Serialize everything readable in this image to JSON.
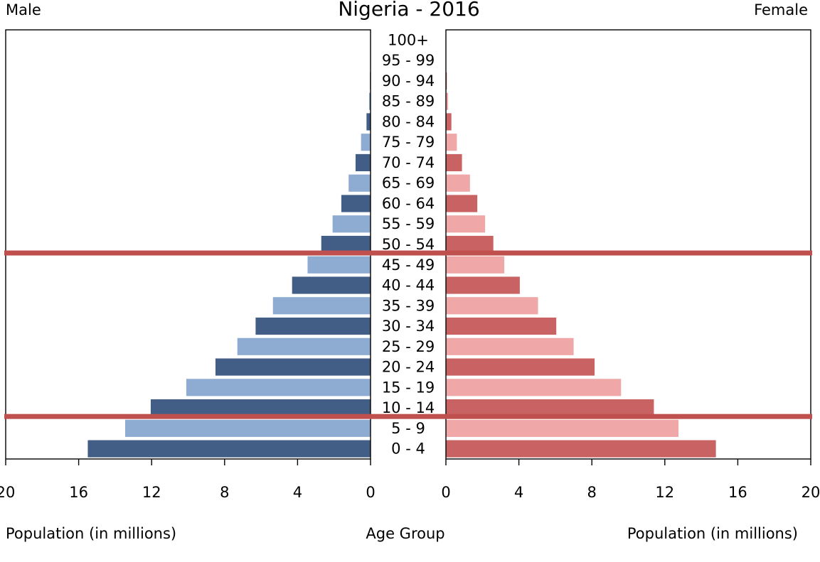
{
  "chart_data": {
    "type": "bar",
    "title": "Nigeria - 2016",
    "left_label": "Male",
    "right_label": "Female",
    "xlabel_left": "Population (in millions)",
    "xlabel_center": "Age Group",
    "xlabel_right": "Population (in millions)",
    "xlim": [
      0,
      20
    ],
    "xticks": [
      0,
      4,
      8,
      12,
      16,
      20
    ],
    "categories": [
      "100+",
      "95 - 99",
      "90 - 94",
      "85 - 89",
      "80 - 84",
      "75 - 79",
      "70 - 74",
      "65 - 69",
      "60 - 64",
      "55 - 59",
      "50 - 54",
      "45 - 49",
      "40 - 44",
      "35 - 39",
      "30 - 34",
      "25 - 29",
      "20 - 24",
      "15 - 19",
      "10 - 14",
      "5 - 9",
      "0 - 4"
    ],
    "series": [
      {
        "name": "Male",
        "values": [
          0.01,
          0.01,
          0.03,
          0.08,
          0.22,
          0.52,
          0.82,
          1.2,
          1.6,
          2.08,
          2.7,
          3.45,
          4.3,
          5.35,
          6.3,
          7.3,
          8.5,
          10.1,
          12.05,
          13.45,
          15.5
        ]
      },
      {
        "name": "Female",
        "values": [
          0.01,
          0.02,
          0.05,
          0.12,
          0.3,
          0.6,
          0.88,
          1.32,
          1.72,
          2.15,
          2.6,
          3.2,
          4.05,
          5.05,
          6.05,
          7.0,
          8.15,
          9.6,
          11.4,
          12.75,
          14.8
        ]
      }
    ],
    "colors": {
      "male_dark": "#435e86",
      "male_light": "#8eabd2",
      "female_dark": "#c96363",
      "female_light": "#f0a7a7",
      "highlight": "#c0504d",
      "axis": "#000000"
    },
    "highlight_lines": [
      "50 - 54",
      "10 - 14"
    ],
    "grid": false
  }
}
